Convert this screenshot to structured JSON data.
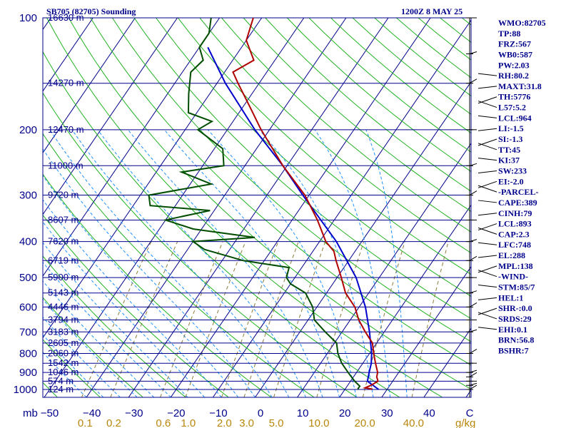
{
  "title_left": "SB705 (82705) Sounding",
  "title_right": "1200Z  8 MAY 25",
  "chart_data": {
    "type": "skew-t",
    "pressure_levels": [
      {
        "p": 100,
        "label": "100",
        "height": "16630 m"
      },
      {
        "p": 150,
        "label": "",
        "height": "14270 m"
      },
      {
        "p": 200,
        "label": "200",
        "height": "12470 m"
      },
      {
        "p": 250,
        "label": "",
        "height": "11000 m"
      },
      {
        "p": 300,
        "label": "300",
        "height": "9720 m"
      },
      {
        "p": 350,
        "label": "",
        "height": "8607 m"
      },
      {
        "p": 400,
        "label": "400",
        "height": "7620 m"
      },
      {
        "p": 450,
        "label": "",
        "height": "6719 m"
      },
      {
        "p": 500,
        "label": "500",
        "height": "5900 m"
      },
      {
        "p": 550,
        "label": "",
        "height": "5143 m"
      },
      {
        "p": 600,
        "label": "600",
        "height": "4446 m"
      },
      {
        "p": 650,
        "label": "",
        "height": "3794 m"
      },
      {
        "p": 700,
        "label": "700",
        "height": "3183 m"
      },
      {
        "p": 750,
        "label": "",
        "height": "2605 m"
      },
      {
        "p": 800,
        "label": "800",
        "height": "2060 m"
      },
      {
        "p": 850,
        "label": "",
        "height": "1542 m"
      },
      {
        "p": 900,
        "label": "900",
        "height": "1046 m"
      },
      {
        "p": 950,
        "label": "",
        "height": "574 m"
      },
      {
        "p": 1000,
        "label": "1000",
        "height": "124 m"
      }
    ],
    "y_unit": "mb",
    "temp_ticks": [
      -50,
      -40,
      -30,
      -20,
      -10,
      0,
      10,
      20,
      30,
      40
    ],
    "temp_tick_labels": [
      "−50",
      "−40",
      "−30",
      "−20",
      "−10",
      "0",
      "10",
      "20",
      "30",
      "40"
    ],
    "temp_unit": "C",
    "mixing_ratio_ticks": [
      0.1,
      0.2,
      0.6,
      1.0,
      2.0,
      3.0,
      5.0,
      10.0,
      20.0,
      40.0
    ],
    "mixing_ratio_labels": [
      "0.1",
      "0.2",
      "0.6",
      "1.0",
      "2.0",
      "3.0",
      "5.0",
      "10.0",
      "20.0",
      "40.0"
    ],
    "mixing_ratio_unit": "g/kg",
    "temperature_profile": [
      {
        "p": 998,
        "t": 26.5
      },
      {
        "p": 990,
        "t": 24.5
      },
      {
        "p": 975,
        "t": 25.5
      },
      {
        "p": 950,
        "t": 26.5
      },
      {
        "p": 925,
        "t": 25.5
      },
      {
        "p": 900,
        "t": 25.0
      },
      {
        "p": 850,
        "t": 23.0
      },
      {
        "p": 800,
        "t": 21.0
      },
      {
        "p": 750,
        "t": 19.0
      },
      {
        "p": 700,
        "t": 15.5
      },
      {
        "p": 650,
        "t": 12.0
      },
      {
        "p": 600,
        "t": 9.0
      },
      {
        "p": 550,
        "t": 4.5
      },
      {
        "p": 500,
        "t": 1.0
      },
      {
        "p": 450,
        "t": -3.0
      },
      {
        "p": 425,
        "t": -5.0
      },
      {
        "p": 400,
        "t": -8.5
      },
      {
        "p": 350,
        "t": -14.0
      },
      {
        "p": 300,
        "t": -21.0
      },
      {
        "p": 250,
        "t": -31.0
      },
      {
        "p": 200,
        "t": -42.0
      },
      {
        "p": 175,
        "t": -48.0
      },
      {
        "p": 150,
        "t": -55.0
      },
      {
        "p": 140,
        "t": -58.0
      },
      {
        "p": 130,
        "t": -55.0
      },
      {
        "p": 115,
        "t": -60.0
      },
      {
        "p": 100,
        "t": -62.0
      }
    ],
    "dewpoint_profile": [
      {
        "p": 998,
        "t": 23.0
      },
      {
        "p": 980,
        "t": 23.0
      },
      {
        "p": 950,
        "t": 21.0
      },
      {
        "p": 925,
        "t": 19.5
      },
      {
        "p": 900,
        "t": 18.0
      },
      {
        "p": 850,
        "t": 15.0
      },
      {
        "p": 800,
        "t": 12.5
      },
      {
        "p": 750,
        "t": 10.5
      },
      {
        "p": 700,
        "t": 6.0
      },
      {
        "p": 650,
        "t": 1.5
      },
      {
        "p": 600,
        "t": -1.0
      },
      {
        "p": 550,
        "t": -5.0
      },
      {
        "p": 520,
        "t": -10.0
      },
      {
        "p": 500,
        "t": -12.0
      },
      {
        "p": 470,
        "t": -13.0
      },
      {
        "p": 450,
        "t": -25.0
      },
      {
        "p": 420,
        "t": -36.0
      },
      {
        "p": 400,
        "t": -40.0
      },
      {
        "p": 390,
        "t": -26.0
      },
      {
        "p": 370,
        "t": -42.0
      },
      {
        "p": 350,
        "t": -50.0
      },
      {
        "p": 330,
        "t": -41.0
      },
      {
        "p": 320,
        "t": -56.0
      },
      {
        "p": 300,
        "t": -58.0
      },
      {
        "p": 280,
        "t": -45.0
      },
      {
        "p": 260,
        "t": -54.0
      },
      {
        "p": 250,
        "t": -45.0
      },
      {
        "p": 225,
        "t": -48.0
      },
      {
        "p": 200,
        "t": -57.0
      },
      {
        "p": 190,
        "t": -55.0
      },
      {
        "p": 180,
        "t": -62.0
      },
      {
        "p": 160,
        "t": -65.0
      },
      {
        "p": 140,
        "t": -68.0
      },
      {
        "p": 130,
        "t": -67.0
      },
      {
        "p": 120,
        "t": -70.0
      },
      {
        "p": 110,
        "t": -70.0
      },
      {
        "p": 100,
        "t": -72.0
      }
    ],
    "parcel_profile": [
      {
        "p": 1000,
        "t": 28.0
      },
      {
        "p": 950,
        "t": 24.0
      },
      {
        "p": 900,
        "t": 23.0
      },
      {
        "p": 850,
        "t": 22.0
      },
      {
        "p": 800,
        "t": 20.5
      },
      {
        "p": 700,
        "t": 16.5
      },
      {
        "p": 600,
        "t": 11.5
      },
      {
        "p": 500,
        "t": 4.5
      },
      {
        "p": 400,
        "t": -6.0
      },
      {
        "p": 300,
        "t": -21.5
      },
      {
        "p": 250,
        "t": -31.0
      },
      {
        "p": 200,
        "t": -43.5
      },
      {
        "p": 150,
        "t": -58.0
      },
      {
        "p": 120,
        "t": -68.0
      }
    ],
    "wind_barb_levels": [
      1000,
      975,
      950,
      925,
      900,
      850,
      800,
      700,
      650,
      600,
      550,
      500,
      450,
      400,
      350,
      300,
      250,
      200,
      150,
      125,
      100
    ]
  },
  "indices": [
    "WMO:82705",
    "TP:88",
    "FRZ:567",
    "WB0:587",
    "PW:2.03",
    "RH:80.2",
    "MAXT:31.8",
    "TH:5776",
    "L57:5.2",
    "LCL:964",
    "LI:-1.5",
    "SI:-1.3",
    "TT:45",
    "KI:37",
    "SW:233",
    "EI:-2.0",
    "-PARCEL-",
    "CAPE:389",
    "CINH:79",
    "LCL:893",
    "CAP:2.3",
    "LFC:748",
    "EL:288",
    "MPL:138",
    "-WIND-",
    "STM:85/7",
    "HEL:1",
    "SHR-:0.0",
    "SRDS:29",
    "EHI:0.1",
    "BRN:56.8",
    "BSHR:7"
  ],
  "colors": {
    "isobar": "#00008b",
    "isotherm": "#00008b",
    "dry_adiabat": "#22b322",
    "moist_adiabat": "#1e90ff",
    "mixing_ratio": "#8b7d3a",
    "temperature": "#b00000",
    "dewpoint": "#004d00",
    "parcel": "#0000cc",
    "text": "#00008b",
    "mixing_label": "#b8860b"
  }
}
